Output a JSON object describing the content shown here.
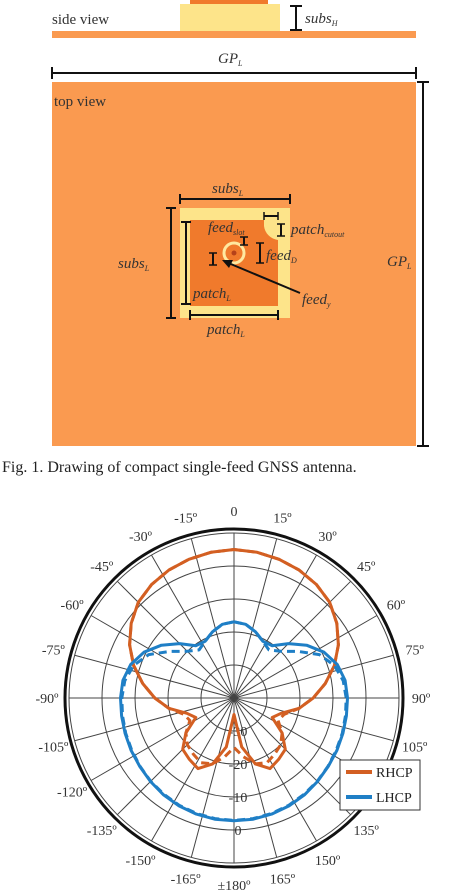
{
  "figure1": {
    "side_view_label": "side view",
    "top_view_label": "top view",
    "subs_h": {
      "base": "subs",
      "sub": "H"
    },
    "gp_l_top": {
      "base": "GP",
      "sub": "L"
    },
    "gp_l_right": {
      "base": "GP",
      "sub": "L"
    },
    "subs_l_top": {
      "base": "subs",
      "sub": "L"
    },
    "subs_l_left": {
      "base": "subs",
      "sub": "L"
    },
    "feed_slot": {
      "base": "feed",
      "sub": "slot"
    },
    "patch_cutout": {
      "base": "patch",
      "sub": "cutout"
    },
    "feed_d": {
      "base": "feed",
      "sub": "D"
    },
    "feed_y": {
      "base": "feed",
      "sub": "y"
    },
    "patch_l_inner": {
      "base": "patch",
      "sub": "L"
    },
    "patch_l_bottom": {
      "base": "patch",
      "sub": "L"
    },
    "caption": "Fig. 1.  Drawing of compact single-feed GNSS antenna.",
    "colors": {
      "ground_plane": "#fa9a50",
      "substrate": "#fde48a",
      "patch": "#f07a2c",
      "feed_ring": "#ffe9a0"
    }
  },
  "chart_data": {
    "type": "polar",
    "angle_labels": [
      "0",
      "15º",
      "30º",
      "45º",
      "60º",
      "75º",
      "90º",
      "105º",
      "135º",
      "150º",
      "165º",
      "±180º",
      "-165º",
      "-150º",
      "-135º",
      "-120º",
      "-105º",
      "-90º",
      "-75º",
      "-60º",
      "-45º",
      "-30º",
      "-15º",
      "0º"
    ],
    "radial_ticks": [
      "-30",
      "-20",
      "-10",
      "0"
    ],
    "radial_range": [
      -40,
      10
    ],
    "series": [
      {
        "name": "RHCP",
        "color": "#d35f22",
        "pattern": "single-lobe, maximum toward 0º",
        "solid_db": [
          5,
          4.7,
          4.2,
          3.5,
          2.5,
          1,
          -1.5,
          -4.5,
          -8,
          -12,
          -16,
          -20,
          -25,
          -27,
          -22,
          -18,
          -17,
          -16,
          -19,
          -25,
          -35,
          -25,
          -19,
          -16,
          -17,
          -18,
          -22,
          -27,
          -25,
          -20,
          -16,
          -12,
          -8,
          -4.5,
          -1.5,
          1,
          2.5,
          3.5,
          4.2,
          4.7,
          5
        ],
        "dashed_db": [
          5,
          4.7,
          4.2,
          3.5,
          2.5,
          1,
          -1.5,
          -4.5,
          -8,
          -12,
          -16,
          -20,
          -24,
          -25,
          -22,
          -20,
          -19,
          -18,
          -19,
          -22,
          -25,
          -22,
          -19,
          -18,
          -19,
          -20,
          -22,
          -25,
          -24,
          -20,
          -16,
          -12,
          -8,
          -4.5,
          -1.5,
          1,
          2.5,
          3.5,
          4.2,
          4.7,
          5
        ]
      },
      {
        "name": "LHCP",
        "color": "#1f7fc6",
        "pattern": "three-lobe, maxima toward ±120º and 180º",
        "solid_db": [
          -16.9,
          -17.4,
          -18.9,
          -20.7,
          -20.4,
          -16.7,
          -12.8,
          -9.4,
          -7.1,
          -5.9,
          -5.6,
          -5.5,
          -5.3,
          -5.0,
          -4.7,
          -4.2,
          -3.7,
          -3.3,
          -3.0,
          -2.8,
          -2.8,
          -2.8,
          -3.0,
          -3.3,
          -3.7,
          -4.2,
          -4.7,
          -5.0,
          -5.3,
          -5.5,
          -5.6,
          -5.9,
          -7.1,
          -9.4,
          -12.8,
          -16.7,
          -20.4,
          -20.7,
          -18.9,
          -17.4,
          -16.9
        ],
        "dashed_db": [
          -16.9,
          -17.4,
          -18.9,
          -20.7,
          -22,
          -20,
          -16,
          -11,
          -8,
          -6.5,
          -6,
          -5.8,
          -5.5,
          -5.2,
          -4.8,
          -4.3,
          -3.9,
          -3.5,
          -3.2,
          -3.0,
          -2.9,
          -3.0,
          -3.2,
          -3.5,
          -3.9,
          -4.3,
          -4.8,
          -5.2,
          -5.5,
          -5.8,
          -6,
          -6.5,
          -8,
          -11,
          -16,
          -20,
          -22,
          -20.7,
          -18.9,
          -17.4,
          -16.9
        ]
      }
    ],
    "legend": {
      "position": "bottom-right",
      "entries": [
        "RHCP",
        "LHCP"
      ]
    },
    "grid": true
  }
}
